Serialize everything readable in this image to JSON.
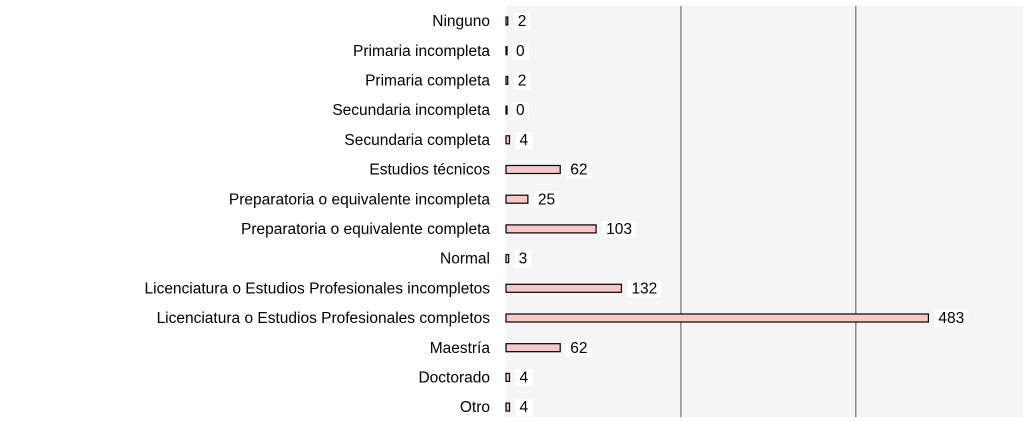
{
  "chart_data": {
    "type": "bar",
    "orientation": "horizontal",
    "categories": [
      "Ninguno",
      "Primaria incompleta",
      "Primaria completa",
      "Secundaria incompleta",
      "Secundaria completa",
      "Estudios técnicos",
      "Preparatoria o equivalente incompleta",
      "Preparatoria o equivalente completa",
      "Normal",
      "Licenciatura o Estudios Profesionales incompletos",
      "Licenciatura o Estudios Profesionales completos",
      "Maestría",
      "Doctorado",
      "Otro"
    ],
    "values": [
      2,
      0,
      2,
      0,
      4,
      62,
      25,
      103,
      3,
      132,
      483,
      62,
      4,
      4
    ],
    "color": "#f8c8c8",
    "xlim": [
      0,
      590
    ],
    "xticks": [
      0,
      200,
      400
    ],
    "grid": true
  }
}
